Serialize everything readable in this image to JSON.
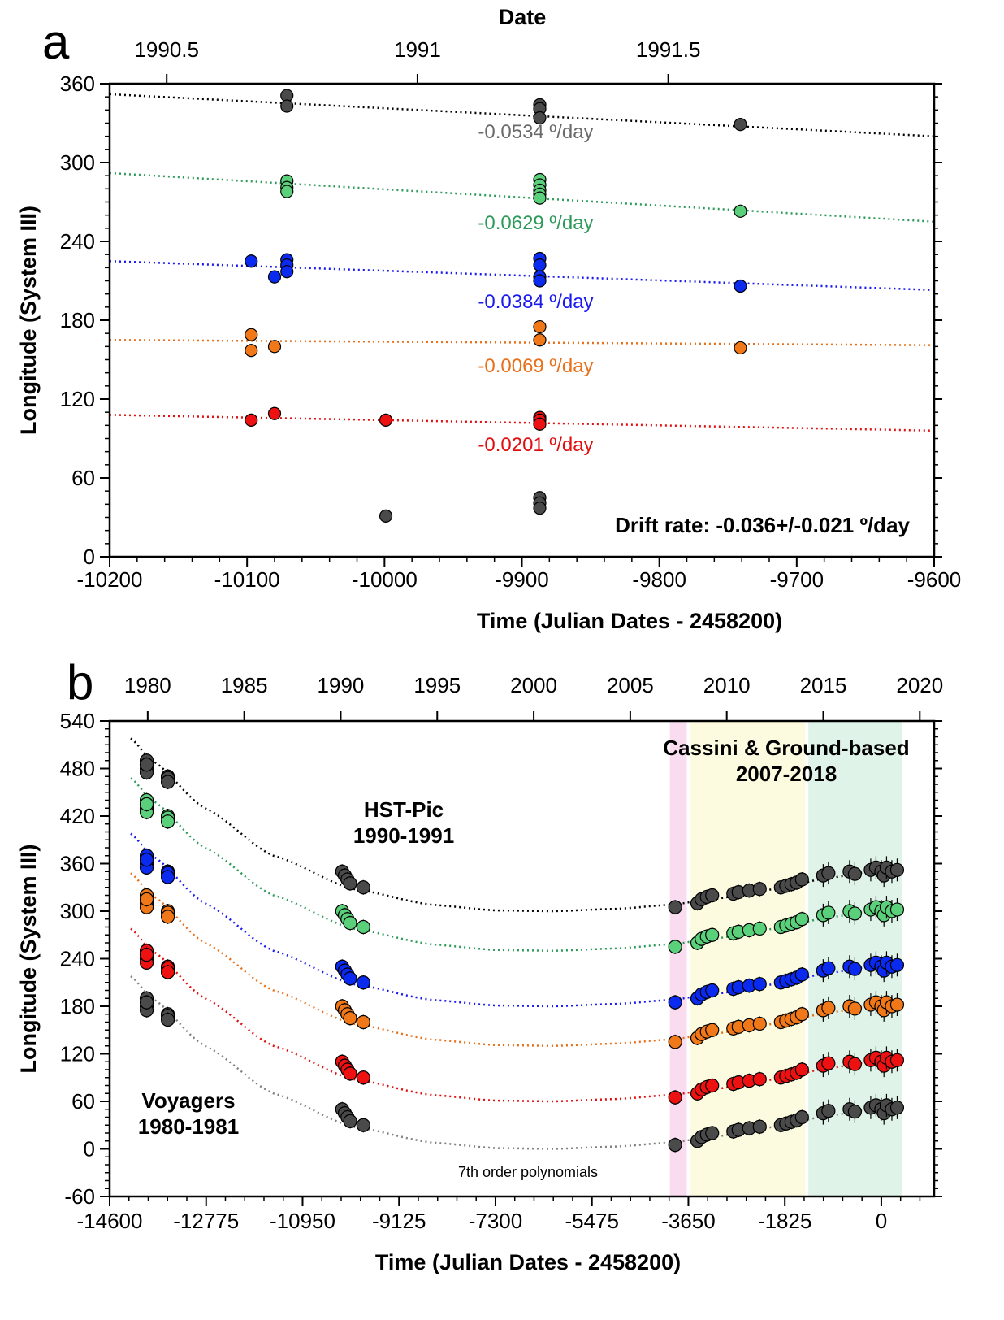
{
  "figure": {
    "panel_a_letter": "a",
    "panel_b_letter": "b"
  },
  "chart_data": [
    {
      "type": "scatter",
      "panel": "a",
      "title": "",
      "top_axis_label": "Date",
      "top_ticks": [
        {
          "x": -10158.5,
          "label": "1990.5"
        },
        {
          "x": -9976,
          "label": "1991"
        },
        {
          "x": -9793.5,
          "label": "1991.5"
        }
      ],
      "xlabel": "Time (Julian Dates - 2458200)",
      "ylabel": "Longitude (System III)",
      "xlim": [
        -10200,
        -9600
      ],
      "ylim": [
        0,
        360
      ],
      "xticks": [
        -10200,
        -10100,
        -10000,
        -9900,
        -9800,
        -9700,
        -9600
      ],
      "xtick_labels": [
        "-10200",
        "-10100",
        "-10000",
        "-9900",
        "-9800",
        "-9700",
        "-9600"
      ],
      "yticks": [
        0,
        60,
        120,
        180,
        240,
        300,
        360
      ],
      "ytick_labels": [
        "0",
        "60",
        "120",
        "180",
        "240",
        "300",
        "360"
      ],
      "annotation": "Drift rate: -0.036+/-0.021 º/day",
      "series": [
        {
          "name": "black",
          "color": "#4a4a4a",
          "line_color": "#000000",
          "rate_label": "-0.0534 º/day",
          "rate_color": "#6a6a6a",
          "rate_pos": [
            -9932,
            324
          ],
          "fit": [
            [
              -10200,
              352
            ],
            [
              -9600,
              320
            ]
          ],
          "points": [
            [
              -10071,
              351
            ],
            [
              -10071,
              343
            ],
            [
              -9887,
              344
            ],
            [
              -9887,
              341
            ],
            [
              -9887,
              334
            ],
            [
              -9741,
              329
            ]
          ]
        },
        {
          "name": "green",
          "color": "#5ad07a",
          "line_color": "#2e9a5a",
          "rate_label": "-0.0629 º/day",
          "rate_color": "#2e9a5a",
          "rate_pos": [
            -9932,
            255
          ],
          "fit": [
            [
              -10200,
              292
            ],
            [
              -9600,
              255
            ]
          ],
          "points": [
            [
              -10071,
              286
            ],
            [
              -10071,
              281
            ],
            [
              -10071,
              278
            ],
            [
              -9887,
              287
            ],
            [
              -9887,
              283
            ],
            [
              -9887,
              279
            ],
            [
              -9887,
              276
            ],
            [
              -9887,
              273
            ],
            [
              -9741,
              263
            ]
          ]
        },
        {
          "name": "blue",
          "color": "#0a2af0",
          "line_color": "#1a1af0",
          "rate_label": "-0.0384 º/day",
          "rate_color": "#1a1af0",
          "rate_pos": [
            -9932,
            195
          ],
          "fit": [
            [
              -10200,
              225
            ],
            [
              -9600,
              203
            ]
          ],
          "points": [
            [
              -10097,
              225
            ],
            [
              -10080,
              213
            ],
            [
              -10071,
              226
            ],
            [
              -10071,
              222
            ],
            [
              -10071,
              217
            ],
            [
              -9887,
              227
            ],
            [
              -9887,
              222
            ],
            [
              -9887,
              213
            ],
            [
              -9887,
              210
            ],
            [
              -9741,
              206
            ]
          ]
        },
        {
          "name": "orange",
          "color": "#f07818",
          "line_color": "#e8701a",
          "rate_label": "-0.0069 º/day",
          "rate_color": "#e8701a",
          "rate_pos": [
            -9932,
            146
          ],
          "fit": [
            [
              -10200,
              165
            ],
            [
              -9600,
              161
            ]
          ],
          "points": [
            [
              -10097,
              169
            ],
            [
              -10097,
              157
            ],
            [
              -10080,
              160
            ],
            [
              -9887,
              175
            ],
            [
              -9887,
              165
            ],
            [
              -9741,
              159
            ]
          ]
        },
        {
          "name": "red",
          "color": "#ee1111",
          "line_color": "#e01010",
          "rate_label": "-0.0201 º/day",
          "rate_color": "#e01010",
          "rate_pos": [
            -9932,
            86
          ],
          "fit": [
            [
              -10200,
              108
            ],
            [
              -9600,
              96
            ]
          ],
          "points": [
            [
              -10097,
              104
            ],
            [
              -10080,
              109
            ],
            [
              -9999,
              104
            ],
            [
              -9887,
              106
            ],
            [
              -9887,
              104
            ],
            [
              -9887,
              101
            ]
          ]
        },
        {
          "name": "gray",
          "color": "#4a4a4a",
          "line_color": null,
          "points": [
            [
              -9999,
              31
            ],
            [
              -9887,
              45
            ],
            [
              -9887,
              41
            ],
            [
              -9887,
              37
            ]
          ]
        }
      ]
    },
    {
      "type": "scatter",
      "panel": "b",
      "title": "",
      "top_ticks": [
        {
          "x": -13880,
          "label": "1980"
        },
        {
          "x": -12054,
          "label": "1985"
        },
        {
          "x": -10228,
          "label": "1990"
        },
        {
          "x": -8402,
          "label": "1995"
        },
        {
          "x": -6576,
          "label": "2000"
        },
        {
          "x": -4750,
          "label": "2005"
        },
        {
          "x": -2924,
          "label": "2010"
        },
        {
          "x": -1098,
          "label": "2015"
        },
        {
          "x": 728,
          "label": "2020"
        }
      ],
      "xlabel": "Time (Julian Dates - 2458200)",
      "ylabel": "Longitude (System III)",
      "xlim": [
        -14600,
        1000
      ],
      "ylim": [
        -60,
        540
      ],
      "xticks": [
        -14600,
        -12775,
        -10950,
        -9125,
        -7300,
        -5475,
        -3650,
        -1825,
        0
      ],
      "xtick_labels": [
        "-14600",
        "-12775",
        "-10950",
        "-9125",
        "-7300",
        "-5475",
        "-3650",
        "-1825",
        "0"
      ],
      "yticks": [
        -60,
        0,
        60,
        120,
        180,
        240,
        300,
        360,
        420,
        480,
        540
      ],
      "ytick_labels": [
        "-60",
        "0",
        "60",
        "120",
        "180",
        "240",
        "300",
        "360",
        "420",
        "480",
        "540"
      ],
      "regions": [
        {
          "name": "pink",
          "x": [
            -4000,
            -3680
          ],
          "color": "#f8d8ee"
        },
        {
          "name": "yellow",
          "x": [
            -3620,
            -1440
          ],
          "color": "#fdfbdc"
        },
        {
          "name": "green",
          "x": [
            -1380,
            390
          ],
          "color": "#dcf2e6"
        }
      ],
      "labels": {
        "voyagers": [
          "Voyagers",
          "1980-1981"
        ],
        "hst": [
          "HST-Pic",
          "1990-1991"
        ],
        "cassini": [
          "Cassini & Ground-based",
          "2007-2018"
        ],
        "poly": "7th order polynomials"
      },
      "series": [
        {
          "name": "black",
          "color": "#4a4a4a",
          "line_color": "#000000",
          "offset": 300,
          "points": [
            [
              -13900,
              190
            ],
            [
              -13900,
              180
            ],
            [
              -13900,
              175
            ],
            [
              -13900,
              185
            ],
            [
              -13500,
              170
            ],
            [
              -13500,
              168
            ],
            [
              -13500,
              163
            ],
            [
              -10200,
              50
            ],
            [
              -10150,
              45
            ],
            [
              -10100,
              40
            ],
            [
              -10050,
              35
            ],
            [
              -9800,
              30
            ],
            [
              -3900,
              5
            ],
            [
              -3480,
              10
            ],
            [
              -3400,
              15
            ],
            [
              -3300,
              18
            ],
            [
              -3200,
              20
            ],
            [
              -2800,
              22
            ],
            [
              -2700,
              24
            ],
            [
              -2500,
              26
            ],
            [
              -2300,
              28
            ],
            [
              -1900,
              30
            ],
            [
              -1800,
              32
            ],
            [
              -1700,
              34
            ],
            [
              -1600,
              36
            ],
            [
              -1500,
              40
            ],
            [
              -1100,
              45
            ],
            [
              -1000,
              48
            ],
            [
              -600,
              50
            ],
            [
              -500,
              47
            ],
            [
              -200,
              52
            ],
            [
              -100,
              55
            ],
            [
              0,
              50
            ],
            [
              50,
              45
            ],
            [
              100,
              55
            ],
            [
              200,
              50
            ],
            [
              300,
              52
            ]
          ]
        },
        {
          "name": "green",
          "color": "#5ad07a",
          "line_color": "#2e9a5a",
          "offset": 250
        },
        {
          "name": "blue",
          "color": "#0a2af0",
          "line_color": "#1a1af0",
          "offset": 180
        },
        {
          "name": "orange",
          "color": "#f07818",
          "line_color": "#e8701a",
          "offset": 130
        },
        {
          "name": "red",
          "color": "#ee1111",
          "line_color": "#e01010",
          "offset": 60
        },
        {
          "name": "gray",
          "color": "#4a4a4a",
          "line_color": "#808080",
          "offset": 0
        }
      ]
    }
  ]
}
